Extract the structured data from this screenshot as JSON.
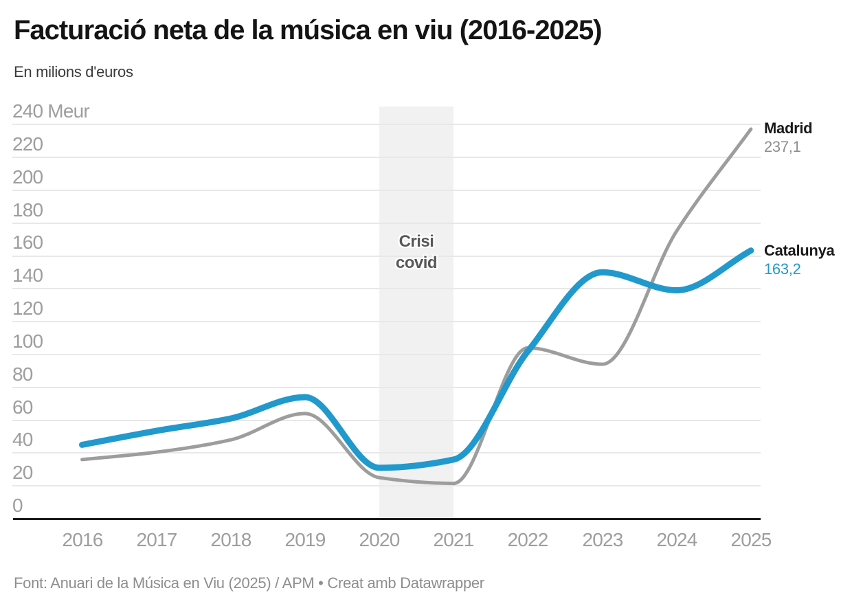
{
  "header": {
    "title": "Facturació neta de la música en viu (2016-2025)",
    "subtitle": "En milions d'euros"
  },
  "chart_data": {
    "type": "line",
    "title": "Facturació neta de la música en viu (2016-2025)",
    "subtitle": "En milions d'euros",
    "unit": "milions d'euros (Meur)",
    "x": [
      2016,
      2017,
      2018,
      2019,
      2020,
      2021,
      2022,
      2023,
      2024,
      2025
    ],
    "series": [
      {
        "name": "Madrid",
        "color": "#9d9d9d",
        "value_color": "#8e8e8e",
        "values": [
          36,
          40.5,
          48,
          64,
          25,
          21.5,
          104,
          94,
          175,
          237.1
        ],
        "end_label": "Madrid",
        "end_value": "237,1"
      },
      {
        "name": "Catalunya",
        "color": "#2199cc",
        "value_color": "#2199cc",
        "values": [
          45,
          53.5,
          61,
          74,
          31,
          36,
          102,
          150,
          139,
          163.2
        ],
        "end_label": "Catalunya",
        "end_value": "163,2"
      }
    ],
    "ylim": [
      0,
      240
    ],
    "ytick_step": 20,
    "ytick_top_label": "240 Meur",
    "grid": true,
    "legend_position": "line-end-labels",
    "annotation": {
      "label_lines": [
        "Crisi",
        "covid"
      ],
      "band_from": 2020,
      "band_to": 2021
    }
  },
  "axis": {
    "y_labels": [
      "0",
      "20",
      "40",
      "60",
      "80",
      "100",
      "120",
      "140",
      "160",
      "180",
      "200",
      "220",
      "240 Meur"
    ],
    "x_labels": [
      "2016",
      "2017",
      "2018",
      "2019",
      "2020",
      "2021",
      "2022",
      "2023",
      "2024",
      "2025"
    ]
  },
  "footer": {
    "text": "Font: Anuari de la Música en Viu (2025) / APM • Creat amb Datawrapper"
  }
}
